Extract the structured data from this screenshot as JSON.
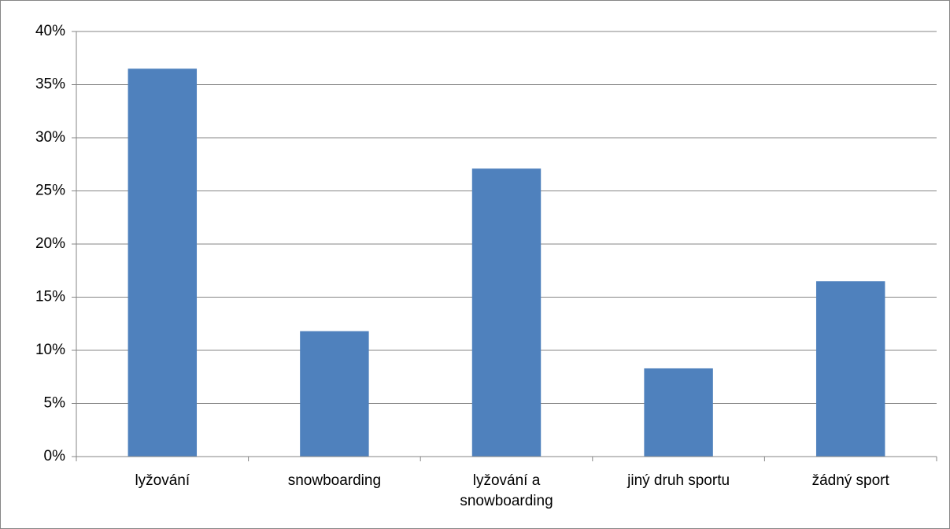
{
  "chart_data": {
    "type": "bar",
    "categories": [
      "lyžování",
      "snowboarding",
      "lyžování a snowboarding",
      "jiný druh sportu",
      "žádný sport"
    ],
    "values": [
      36.5,
      11.8,
      27.1,
      8.3,
      16.5
    ],
    "color": "#4f81bd",
    "ylim": [
      0,
      40
    ],
    "yticks": [
      {
        "value": 0,
        "label": "0%"
      },
      {
        "value": 5,
        "label": "5%"
      },
      {
        "value": 10,
        "label": "10%"
      },
      {
        "value": 15,
        "label": "15%"
      },
      {
        "value": 20,
        "label": "20%"
      },
      {
        "value": 25,
        "label": "25%"
      },
      {
        "value": 30,
        "label": "30%"
      },
      {
        "value": 35,
        "label": "35%"
      },
      {
        "value": 40,
        "label": "40%"
      }
    ],
    "grid": true
  }
}
